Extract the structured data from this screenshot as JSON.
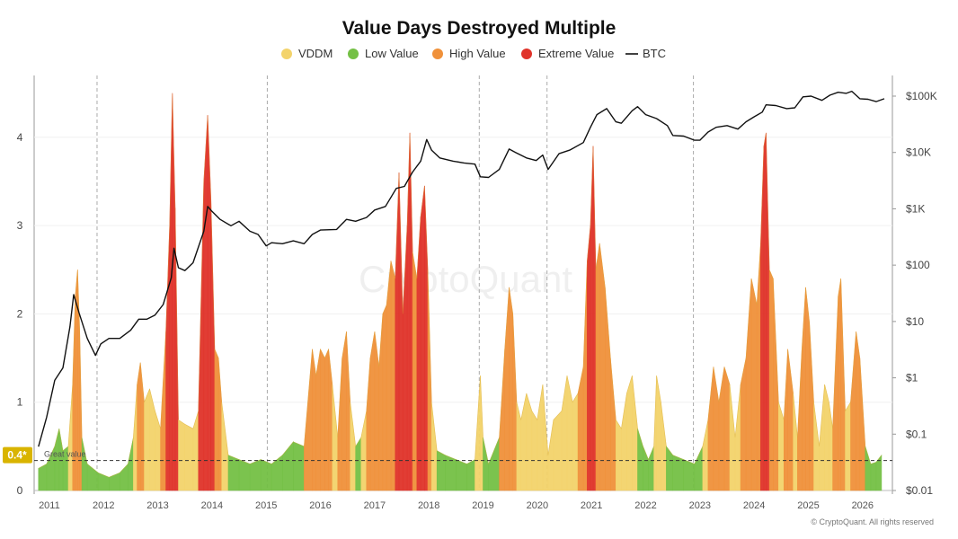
{
  "chart_data": {
    "type": "area",
    "title": "Value Days Destroyed Multiple",
    "watermark": "CryptoQuant",
    "copyright": "© CryptoQuant. All rights reserved",
    "legend": [
      {
        "label": "VDDM",
        "color": "#f3d36b"
      },
      {
        "label": "Low Value",
        "color": "#74c045"
      },
      {
        "label": "High Value",
        "color": "#f0913a"
      },
      {
        "label": "Extreme Value",
        "color": "#e0332a"
      },
      {
        "label": "BTC",
        "color": "#111111",
        "line": true
      }
    ],
    "left_axis": {
      "ticks": [
        "0",
        "1",
        "2",
        "3",
        "4"
      ],
      "ylim": [
        0,
        4.7
      ]
    },
    "right_axis": {
      "ticks": [
        "$0.01",
        "$0.1",
        "$1",
        "$10",
        "$100",
        "$1K",
        "$10K",
        "$100K"
      ],
      "scale": "log"
    },
    "x_ticks": [
      "2011",
      "2012",
      "2013",
      "2014",
      "2015",
      "2016",
      "2017",
      "2018",
      "2019",
      "2020",
      "2021",
      "2022",
      "2023",
      "2024",
      "2025",
      "2026"
    ],
    "current_value_badge": "0.4*",
    "reference_line": {
      "label": "Great value",
      "value": 0.34
    },
    "vddm_points": [
      [
        2010.8,
        0.25
      ],
      [
        2010.95,
        0.3
      ],
      [
        2011.1,
        0.5
      ],
      [
        2011.18,
        0.7
      ],
      [
        2011.25,
        0.45
      ],
      [
        2011.35,
        0.5
      ],
      [
        2011.43,
        1.2
      ],
      [
        2011.48,
        2.2
      ],
      [
        2011.52,
        2.5
      ],
      [
        2011.56,
        1.8
      ],
      [
        2011.6,
        0.6
      ],
      [
        2011.7,
        0.3
      ],
      [
        2011.9,
        0.2
      ],
      [
        2012.1,
        0.15
      ],
      [
        2012.3,
        0.2
      ],
      [
        2012.45,
        0.3
      ],
      [
        2012.55,
        0.6
      ],
      [
        2012.62,
        1.2
      ],
      [
        2012.68,
        1.45
      ],
      [
        2012.75,
        1.0
      ],
      [
        2012.85,
        1.15
      ],
      [
        2012.95,
        0.9
      ],
      [
        2013.05,
        0.7
      ],
      [
        2013.15,
        1.8
      ],
      [
        2013.22,
        3.0
      ],
      [
        2013.27,
        4.5
      ],
      [
        2013.32,
        3.2
      ],
      [
        2013.38,
        0.8
      ],
      [
        2013.5,
        0.75
      ],
      [
        2013.65,
        0.7
      ],
      [
        2013.75,
        0.9
      ],
      [
        2013.85,
        3.5
      ],
      [
        2013.92,
        4.25
      ],
      [
        2013.98,
        3.3
      ],
      [
        2014.05,
        1.6
      ],
      [
        2014.12,
        1.5
      ],
      [
        2014.18,
        1.0
      ],
      [
        2014.3,
        0.4
      ],
      [
        2014.5,
        0.35
      ],
      [
        2014.7,
        0.3
      ],
      [
        2014.9,
        0.35
      ],
      [
        2015.1,
        0.3
      ],
      [
        2015.3,
        0.4
      ],
      [
        2015.5,
        0.55
      ],
      [
        2015.7,
        0.5
      ],
      [
        2015.85,
        1.6
      ],
      [
        2015.92,
        1.3
      ],
      [
        2016.0,
        1.6
      ],
      [
        2016.08,
        1.5
      ],
      [
        2016.15,
        1.6
      ],
      [
        2016.22,
        1.2
      ],
      [
        2016.32,
        0.6
      ],
      [
        2016.4,
        1.5
      ],
      [
        2016.48,
        1.8
      ],
      [
        2016.55,
        1.0
      ],
      [
        2016.65,
        0.5
      ],
      [
        2016.75,
        0.6
      ],
      [
        2016.85,
        0.9
      ],
      [
        2016.92,
        1.5
      ],
      [
        2017.0,
        1.8
      ],
      [
        2017.08,
        1.4
      ],
      [
        2017.15,
        2.0
      ],
      [
        2017.22,
        2.1
      ],
      [
        2017.3,
        2.6
      ],
      [
        2017.38,
        2.4
      ],
      [
        2017.45,
        3.6
      ],
      [
        2017.52,
        2.0
      ],
      [
        2017.6,
        3.0
      ],
      [
        2017.65,
        4.05
      ],
      [
        2017.7,
        2.7
      ],
      [
        2017.78,
        2.4
      ],
      [
        2017.85,
        3.1
      ],
      [
        2017.92,
        3.45
      ],
      [
        2017.98,
        2.5
      ],
      [
        2018.05,
        1.0
      ],
      [
        2018.15,
        0.45
      ],
      [
        2018.3,
        0.4
      ],
      [
        2018.5,
        0.35
      ],
      [
        2018.7,
        0.3
      ],
      [
        2018.85,
        0.35
      ],
      [
        2018.95,
        1.3
      ],
      [
        2019.0,
        0.6
      ],
      [
        2019.1,
        0.3
      ],
      [
        2019.3,
        0.6
      ],
      [
        2019.4,
        1.6
      ],
      [
        2019.48,
        2.3
      ],
      [
        2019.55,
        2.0
      ],
      [
        2019.62,
        1.0
      ],
      [
        2019.7,
        0.8
      ],
      [
        2019.8,
        1.1
      ],
      [
        2019.9,
        0.9
      ],
      [
        2020.0,
        0.8
      ],
      [
        2020.1,
        1.2
      ],
      [
        2020.2,
        0.4
      ],
      [
        2020.3,
        0.8
      ],
      [
        2020.45,
        0.9
      ],
      [
        2020.55,
        1.3
      ],
      [
        2020.65,
        1.0
      ],
      [
        2020.75,
        1.1
      ],
      [
        2020.85,
        1.4
      ],
      [
        2020.92,
        2.6
      ],
      [
        2020.98,
        3.0
      ],
      [
        2021.03,
        3.9
      ],
      [
        2021.08,
        2.5
      ],
      [
        2021.15,
        2.8
      ],
      [
        2021.25,
        2.3
      ],
      [
        2021.35,
        1.5
      ],
      [
        2021.45,
        0.8
      ],
      [
        2021.55,
        0.7
      ],
      [
        2021.65,
        1.1
      ],
      [
        2021.75,
        1.3
      ],
      [
        2021.85,
        0.7
      ],
      [
        2021.95,
        0.5
      ],
      [
        2022.05,
        0.35
      ],
      [
        2022.15,
        0.5
      ],
      [
        2022.2,
        1.3
      ],
      [
        2022.28,
        1.0
      ],
      [
        2022.38,
        0.5
      ],
      [
        2022.5,
        0.4
      ],
      [
        2022.7,
        0.35
      ],
      [
        2022.9,
        0.3
      ],
      [
        2023.05,
        0.5
      ],
      [
        2023.15,
        0.8
      ],
      [
        2023.25,
        1.4
      ],
      [
        2023.35,
        1.0
      ],
      [
        2023.45,
        1.4
      ],
      [
        2023.55,
        1.2
      ],
      [
        2023.65,
        0.6
      ],
      [
        2023.75,
        1.2
      ],
      [
        2023.85,
        1.5
      ],
      [
        2023.95,
        2.4
      ],
      [
        2024.05,
        2.1
      ],
      [
        2024.12,
        2.8
      ],
      [
        2024.18,
        3.9
      ],
      [
        2024.22,
        4.05
      ],
      [
        2024.28,
        2.5
      ],
      [
        2024.35,
        2.4
      ],
      [
        2024.45,
        1.0
      ],
      [
        2024.55,
        0.8
      ],
      [
        2024.62,
        1.6
      ],
      [
        2024.72,
        1.1
      ],
      [
        2024.8,
        0.6
      ],
      [
        2024.88,
        1.6
      ],
      [
        2024.95,
        2.3
      ],
      [
        2025.02,
        1.9
      ],
      [
        2025.1,
        1.0
      ],
      [
        2025.2,
        0.5
      ],
      [
        2025.3,
        1.2
      ],
      [
        2025.38,
        1.0
      ],
      [
        2025.45,
        0.7
      ],
      [
        2025.55,
        2.2
      ],
      [
        2025.6,
        2.4
      ],
      [
        2025.68,
        0.9
      ],
      [
        2025.78,
        1.0
      ],
      [
        2025.88,
        1.8
      ],
      [
        2025.95,
        1.5
      ],
      [
        2026.05,
        0.5
      ],
      [
        2026.15,
        0.3
      ],
      [
        2026.25,
        0.32
      ],
      [
        2026.35,
        0.4
      ]
    ],
    "btc_price_points": [
      [
        2010.8,
        0.06
      ],
      [
        2010.95,
        0.2
      ],
      [
        2011.1,
        0.9
      ],
      [
        2011.25,
        1.5
      ],
      [
        2011.38,
        8
      ],
      [
        2011.45,
        30
      ],
      [
        2011.55,
        14
      ],
      [
        2011.7,
        5
      ],
      [
        2011.85,
        2.5
      ],
      [
        2011.95,
        4
      ],
      [
        2012.1,
        5
      ],
      [
        2012.3,
        5
      ],
      [
        2012.5,
        7
      ],
      [
        2012.65,
        11
      ],
      [
        2012.8,
        11
      ],
      [
        2012.95,
        13
      ],
      [
        2013.1,
        20
      ],
      [
        2013.25,
        60
      ],
      [
        2013.3,
        200
      ],
      [
        2013.38,
        90
      ],
      [
        2013.5,
        80
      ],
      [
        2013.65,
        110
      ],
      [
        2013.85,
        400
      ],
      [
        2013.92,
        1100
      ],
      [
        2014.0,
        900
      ],
      [
        2014.15,
        650
      ],
      [
        2014.35,
        500
      ],
      [
        2014.5,
        600
      ],
      [
        2014.7,
        400
      ],
      [
        2014.85,
        350
      ],
      [
        2015.0,
        220
      ],
      [
        2015.1,
        250
      ],
      [
        2015.3,
        240
      ],
      [
        2015.5,
        270
      ],
      [
        2015.7,
        240
      ],
      [
        2015.85,
        350
      ],
      [
        2016.0,
        420
      ],
      [
        2016.3,
        430
      ],
      [
        2016.48,
        650
      ],
      [
        2016.65,
        600
      ],
      [
        2016.85,
        700
      ],
      [
        2017.0,
        950
      ],
      [
        2017.2,
        1100
      ],
      [
        2017.4,
        2300
      ],
      [
        2017.55,
        2500
      ],
      [
        2017.7,
        4500
      ],
      [
        2017.85,
        7000
      ],
      [
        2017.96,
        17000
      ],
      [
        2018.05,
        11000
      ],
      [
        2018.2,
        8000
      ],
      [
        2018.45,
        7000
      ],
      [
        2018.65,
        6500
      ],
      [
        2018.85,
        6200
      ],
      [
        2018.95,
        3700
      ],
      [
        2019.1,
        3600
      ],
      [
        2019.3,
        5000
      ],
      [
        2019.48,
        11500
      ],
      [
        2019.6,
        10000
      ],
      [
        2019.8,
        8000
      ],
      [
        2019.98,
        7200
      ],
      [
        2020.1,
        9000
      ],
      [
        2020.2,
        5000
      ],
      [
        2020.4,
        9500
      ],
      [
        2020.6,
        11000
      ],
      [
        2020.85,
        15000
      ],
      [
        2020.98,
        28000
      ],
      [
        2021.1,
        47000
      ],
      [
        2021.28,
        60000
      ],
      [
        2021.45,
        35000
      ],
      [
        2021.55,
        33000
      ],
      [
        2021.75,
        55000
      ],
      [
        2021.85,
        65000
      ],
      [
        2022.0,
        47000
      ],
      [
        2022.2,
        40000
      ],
      [
        2022.4,
        30000
      ],
      [
        2022.5,
        20000
      ],
      [
        2022.7,
        19500
      ],
      [
        2022.9,
        16500
      ],
      [
        2023.0,
        16500
      ],
      [
        2023.15,
        23000
      ],
      [
        2023.3,
        28000
      ],
      [
        2023.5,
        30000
      ],
      [
        2023.7,
        26000
      ],
      [
        2023.85,
        35000
      ],
      [
        2024.0,
        43000
      ],
      [
        2024.15,
        52000
      ],
      [
        2024.22,
        70000
      ],
      [
        2024.4,
        68000
      ],
      [
        2024.6,
        60000
      ],
      [
        2024.75,
        62000
      ],
      [
        2024.9,
        97000
      ],
      [
        2025.05,
        100000
      ],
      [
        2025.25,
        84000
      ],
      [
        2025.4,
        104000
      ],
      [
        2025.55,
        117000
      ],
      [
        2025.7,
        112000
      ],
      [
        2025.8,
        122000
      ],
      [
        2025.95,
        90000
      ],
      [
        2026.1,
        88000
      ],
      [
        2026.25,
        80000
      ],
      [
        2026.4,
        90000
      ]
    ]
  }
}
